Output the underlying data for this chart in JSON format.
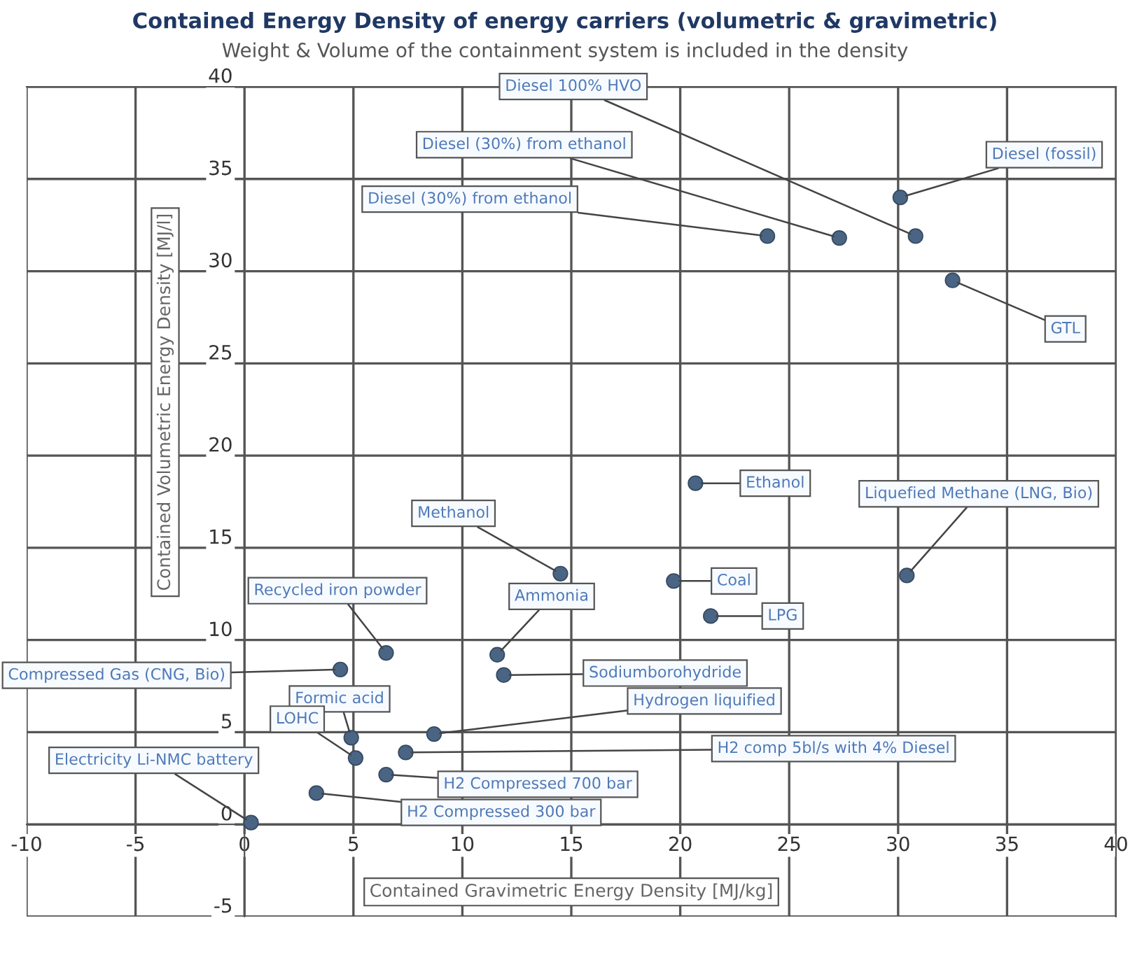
{
  "chart_data": {
    "type": "scatter",
    "title": "Contained Energy Density of energy carriers (volumetric & gravimetric)",
    "subtitle": "Weight & Volume of the containment system is included in the density",
    "xlabel": "Contained Gravimetric Energy Density [MJ/kg]",
    "ylabel": "Contained Volumetric Energy Density [MJ/l]",
    "series": [
      {
        "color": "#4a6484",
        "x": [
          30.1,
          30.8,
          27.3,
          24.0,
          32.5,
          20.7,
          30.4,
          14.5,
          19.7,
          21.4,
          11.6,
          11.9,
          6.5,
          4.4,
          4.9,
          5.1,
          8.7,
          7.4,
          6.5,
          3.3,
          0.3
        ],
        "values": [
          34.0,
          31.9,
          31.8,
          31.9,
          29.5,
          18.5,
          13.5,
          13.6,
          13.2,
          11.3,
          9.2,
          8.1,
          9.3,
          8.4,
          4.7,
          3.6,
          4.9,
          3.9,
          2.7,
          1.7,
          0.1
        ]
      }
    ],
    "annotations": [
      {
        "text": "Diesel (fossil)",
        "x": 30.1,
        "y": 34.0
      },
      {
        "text": "Diesel 100% HVO",
        "x": 30.8,
        "y": 31.9
      },
      {
        "text": "Diesel (30%) from ethanol",
        "x": 27.3,
        "y": 31.8
      },
      {
        "text": "Diesel (30%) from ethanol",
        "x": 24.0,
        "y": 31.9
      },
      {
        "text": "GTL",
        "x": 32.5,
        "y": 29.5
      },
      {
        "text": "Ethanol",
        "x": 20.7,
        "y": 18.5
      },
      {
        "text": "Liquefied Methane (LNG, Bio)",
        "x": 30.4,
        "y": 13.5
      },
      {
        "text": "Methanol",
        "x": 14.5,
        "y": 13.6
      },
      {
        "text": "Coal",
        "x": 19.7,
        "y": 13.2
      },
      {
        "text": "LPG",
        "x": 21.4,
        "y": 11.3
      },
      {
        "text": "Ammonia",
        "x": 11.6,
        "y": 9.2
      },
      {
        "text": "Sodiumborohydride",
        "x": 11.9,
        "y": 8.1
      },
      {
        "text": "Recycled iron powder",
        "x": 6.5,
        "y": 9.3
      },
      {
        "text": "Compressed Gas (CNG, Bio)",
        "x": 4.4,
        "y": 8.4
      },
      {
        "text": "Formic acid",
        "x": 4.9,
        "y": 4.7
      },
      {
        "text": "LOHC",
        "x": 5.1,
        "y": 3.6
      },
      {
        "text": "Hydrogen liquified",
        "x": 8.7,
        "y": 4.9
      },
      {
        "text": "H2 comp 5bl/s with 4% Diesel",
        "x": 7.4,
        "y": 3.9
      },
      {
        "text": "H2 Compressed 700 bar",
        "x": 6.5,
        "y": 2.7
      },
      {
        "text": "H2 Compressed 300 bar",
        "x": 3.3,
        "y": 1.7
      },
      {
        "text": "Electricity Li-NMC battery",
        "x": 0.3,
        "y": 0.1
      }
    ],
    "xlim": [
      -10,
      40
    ],
    "xticks": [
      -10,
      -5,
      0,
      5,
      10,
      15,
      20,
      25,
      30,
      35,
      40
    ],
    "ylim": [
      -5,
      40
    ],
    "yticks": [
      -5,
      0,
      5,
      10,
      15,
      20,
      25,
      30,
      35,
      40
    ],
    "grid": true,
    "marker": "circle"
  }
}
